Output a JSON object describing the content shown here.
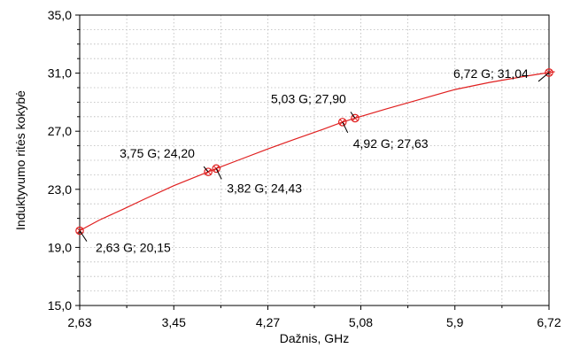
{
  "chart_data": {
    "type": "line",
    "title": "",
    "xlabel": "Dažnis, GHz",
    "ylabel": "Induktyvumo ritės kokybė",
    "xlim": [
      2.63,
      6.72
    ],
    "ylim": [
      15.0,
      35.0
    ],
    "grid": true,
    "x_ticks": [
      2.63,
      3.45,
      4.27,
      5.08,
      5.9,
      6.72
    ],
    "x_tick_labels": [
      "2,63",
      "3,45",
      "4,27",
      "5,08",
      "5,9",
      "6,72"
    ],
    "y_ticks": [
      15.0,
      19.0,
      23.0,
      27.0,
      31.0,
      35.0
    ],
    "y_tick_labels": [
      "15,0",
      "19,0",
      "23,0",
      "27,0",
      "31,0",
      "35,0"
    ],
    "colors": {
      "series": "#e02020"
    },
    "series": [
      {
        "x": [
          2.63,
          2.8,
          3.0,
          3.2,
          3.45,
          3.75,
          3.82,
          4.0,
          4.27,
          4.5,
          4.75,
          4.92,
          5.03,
          5.3,
          5.6,
          5.9,
          6.2,
          6.5,
          6.72,
          6.77
        ],
        "y": [
          20.15,
          20.88,
          21.6,
          22.35,
          23.25,
          24.2,
          24.43,
          24.97,
          25.78,
          26.44,
          27.13,
          27.63,
          27.9,
          28.53,
          29.2,
          29.87,
          30.36,
          30.77,
          31.04,
          31.1
        ]
      }
    ],
    "markers": [
      {
        "x": 2.63,
        "y": 20.15,
        "label": "2,63 G; 20,15"
      },
      {
        "x": 3.75,
        "y": 24.2,
        "label": "3,75 G; 24,20"
      },
      {
        "x": 3.82,
        "y": 24.43,
        "label": "3,82 G; 24,43"
      },
      {
        "x": 4.92,
        "y": 27.63,
        "label": "4,92 G; 27,63"
      },
      {
        "x": 5.03,
        "y": 27.9,
        "label": "5,03 G; 27,90"
      },
      {
        "x": 6.72,
        "y": 31.04,
        "label": "6,72 G; 31,04"
      }
    ]
  }
}
